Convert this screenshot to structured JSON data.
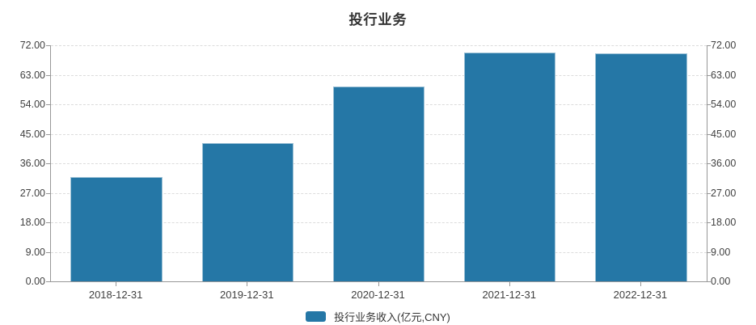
{
  "chart_data": {
    "type": "bar",
    "title": "投行业务",
    "categories": [
      "2018-12-31",
      "2019-12-31",
      "2020-12-31",
      "2021-12-31",
      "2022-12-31"
    ],
    "series": [
      {
        "name": "投行业务收入(亿元,CNY)",
        "values": [
          31.8,
          42.2,
          59.4,
          69.9,
          69.6
        ]
      }
    ],
    "ylabel": "",
    "xlabel": "",
    "ylim": [
      0,
      72
    ],
    "ytick_values": [
      0,
      9,
      18,
      27,
      36,
      45,
      54,
      63,
      72
    ],
    "ytick_labels": [
      "0.00",
      "9.00",
      "18.00",
      "27.00",
      "36.00",
      "45.00",
      "54.00",
      "63.00",
      "72.00"
    ],
    "dual_y_axis": true,
    "grid": true,
    "grid_style": "dashed",
    "legend_position": "bottom",
    "colors": {
      "bar": "#2577a6",
      "bar_border": "#9cc1d6",
      "axis": "#979797",
      "grid": "#dcdcdc",
      "text": "#404040",
      "title": "#333333"
    }
  }
}
